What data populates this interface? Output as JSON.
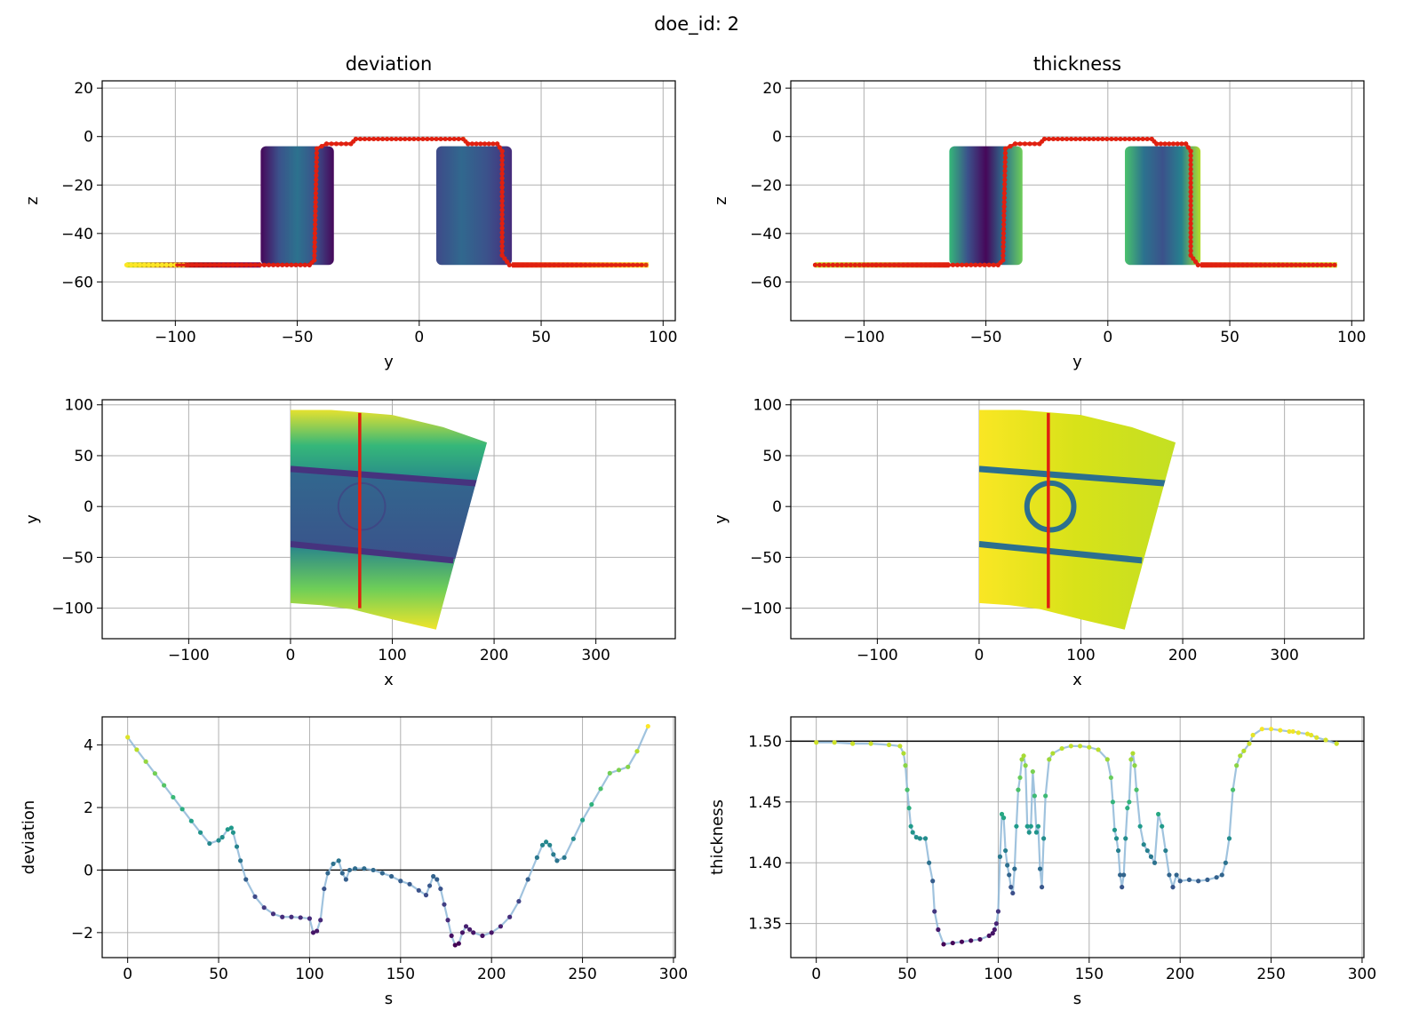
{
  "figure": {
    "suptitle": "doe_id: 2"
  },
  "chart_data": [
    {
      "id": "yz-deviation",
      "type": "scatter",
      "title": "deviation",
      "xlabel": "y",
      "ylabel": "z",
      "xlim": [
        -130,
        105
      ],
      "ylim": [
        -76,
        23
      ],
      "xticks": [
        -100,
        -50,
        0,
        50,
        100
      ],
      "yticks": [
        -60,
        -40,
        -20,
        0,
        20
      ],
      "grid": true,
      "colormap": "viridis",
      "colorset": [
        "#440154",
        "#482878",
        "#3e4a89",
        "#31688e",
        "#26828e",
        "#1f9e89",
        "#35b779",
        "#6ece58",
        "#b5de2b",
        "#fde725"
      ],
      "profile": [
        [
          -120,
          -53
        ],
        [
          -100,
          -53
        ],
        [
          -95,
          -53
        ],
        [
          -45,
          -53
        ],
        [
          -43,
          -51
        ],
        [
          -42,
          -5
        ],
        [
          -38,
          -3
        ],
        [
          -28,
          -3
        ],
        [
          -26,
          -1
        ],
        [
          18,
          -1
        ],
        [
          20,
          -3
        ],
        [
          32,
          -3
        ],
        [
          34,
          -6
        ],
        [
          34,
          -49
        ],
        [
          37,
          -53
        ],
        [
          70,
          -53
        ],
        [
          93,
          -53
        ]
      ],
      "profile_colors": [
        "#fde725",
        "#fde725",
        "#d21010",
        "#d21010",
        "#e02010",
        "#e02010",
        "#e02010",
        "#e02010",
        "#e02010",
        "#e23a10",
        "#e02010",
        "#e02010",
        "#e02010",
        "#e02010",
        "#e02010",
        "#e03a10",
        "#fde725"
      ],
      "projection_line": {
        "color": "#e02010",
        "points": [
          [
            -100,
            -53
          ],
          [
            -45,
            -53
          ],
          [
            -43,
            -51
          ],
          [
            -42,
            -5
          ],
          [
            -38,
            -3
          ],
          [
            -28,
            -3
          ],
          [
            -26,
            -1
          ],
          [
            18,
            -1
          ],
          [
            20,
            -3
          ],
          [
            32,
            -3
          ],
          [
            34,
            -6
          ],
          [
            34,
            -49
          ],
          [
            37,
            -53
          ],
          [
            92,
            -53
          ]
        ]
      },
      "regions": [
        {
          "name": "left-wall",
          "y": [
            -65,
            -35
          ],
          "z": [
            -53,
            -4
          ],
          "colors": [
            "#46075a",
            "#3b528b",
            "#2c728e",
            "#3b528b",
            "#46075a"
          ]
        },
        {
          "name": "right-wall",
          "y": [
            7,
            38
          ],
          "z": [
            -53,
            -4
          ],
          "colors": [
            "#3e4a89",
            "#31688e",
            "#3b528b",
            "#472d7b"
          ]
        }
      ],
      "flanges": [
        {
          "name": "left-flange",
          "y": [
            -120,
            -65
          ],
          "z": -53,
          "colors": [
            "#c8e020",
            "#9b1010",
            "#7a0a5a"
          ]
        },
        {
          "name": "right-flange",
          "y": [
            38,
            94
          ],
          "z": -53,
          "colors": [
            "#e02010",
            "#f07010",
            "#fde725"
          ]
        }
      ]
    },
    {
      "id": "yz-thickness",
      "type": "scatter",
      "title": "thickness",
      "xlabel": "y",
      "ylabel": "z",
      "xlim": [
        -130,
        105
      ],
      "ylim": [
        -76,
        23
      ],
      "xticks": [
        -100,
        -50,
        0,
        50,
        100
      ],
      "yticks": [
        -60,
        -40,
        -20,
        0,
        20
      ],
      "grid": true,
      "colormap": "viridis",
      "profile": [
        [
          -120,
          -53
        ],
        [
          -100,
          -53
        ],
        [
          -95,
          -53
        ],
        [
          -45,
          -53
        ],
        [
          -43,
          -51
        ],
        [
          -42,
          -5
        ],
        [
          -38,
          -3
        ],
        [
          -28,
          -3
        ],
        [
          -26,
          -1
        ],
        [
          18,
          -1
        ],
        [
          20,
          -3
        ],
        [
          32,
          -3
        ],
        [
          34,
          -6
        ],
        [
          34,
          -49
        ],
        [
          37,
          -53
        ],
        [
          70,
          -53
        ],
        [
          93,
          -53
        ]
      ],
      "projection_line": {
        "color": "#e02010",
        "points": [
          [
            -100,
            -53
          ],
          [
            -45,
            -53
          ],
          [
            -43,
            -51
          ],
          [
            -42,
            -5
          ],
          [
            -38,
            -3
          ],
          [
            -28,
            -3
          ],
          [
            -26,
            -1
          ],
          [
            18,
            -1
          ],
          [
            20,
            -3
          ],
          [
            32,
            -3
          ],
          [
            34,
            -6
          ],
          [
            34,
            -49
          ],
          [
            37,
            -53
          ],
          [
            92,
            -53
          ]
        ]
      },
      "regions": [
        {
          "name": "left-wall",
          "y": [
            -65,
            -35
          ],
          "z": [
            -53,
            -4
          ],
          "colors": [
            "#35b779",
            "#3b528b",
            "#46075a",
            "#2c728e",
            "#6ece58"
          ]
        },
        {
          "name": "right-wall",
          "y": [
            7,
            38
          ],
          "z": [
            -53,
            -4
          ],
          "colors": [
            "#4ac16d",
            "#2c728e",
            "#3b528b",
            "#26828e",
            "#b5de2b"
          ]
        }
      ],
      "flanges": [
        {
          "name": "left-flange",
          "y": [
            -120,
            -65
          ],
          "z": -53,
          "colors": [
            "#c8e020",
            "#e02010"
          ]
        },
        {
          "name": "right-flange",
          "y": [
            38,
            94
          ],
          "z": -53,
          "colors": [
            "#e02010",
            "#d0e020"
          ]
        }
      ]
    },
    {
      "id": "xy-deviation",
      "type": "scatter",
      "xlabel": "x",
      "ylabel": "y",
      "xlim": [
        -185,
        378
      ],
      "ylim": [
        -130,
        105
      ],
      "xticks": [
        -100,
        0,
        100,
        200,
        300
      ],
      "yticks": [
        -100,
        -50,
        0,
        50,
        100
      ],
      "grid": true,
      "colormap": "viridis",
      "sheet_outline": [
        [
          0,
          95
        ],
        [
          40,
          95
        ],
        [
          100,
          90
        ],
        [
          150,
          78
        ],
        [
          193,
          63
        ],
        [
          143,
          -121
        ],
        [
          100,
          -111
        ],
        [
          60,
          -101
        ],
        [
          30,
          -97
        ],
        [
          0,
          -95
        ]
      ],
      "bands": [
        {
          "name": "outer-top",
          "stops": [
            "#fde725",
            "#35b779",
            "#26828e"
          ]
        },
        {
          "name": "inner",
          "stops": [
            "#31688e",
            "#3b528b"
          ]
        },
        {
          "name": "outer-bottom",
          "stops": [
            "#26828e",
            "#6ece58",
            "#fde725"
          ]
        }
      ],
      "edge_lines": {
        "color": "#46337e",
        "upper_y": [
          37,
          22
        ],
        "lower_y": [
          -37,
          -53
        ]
      },
      "circle": {
        "cx": 70,
        "cy": 0,
        "r": 23
      },
      "section_line": {
        "color": "#e02010",
        "x": 68,
        "y": [
          -100,
          92
        ]
      }
    },
    {
      "id": "xy-thickness",
      "type": "scatter",
      "xlabel": "x",
      "ylabel": "y",
      "xlim": [
        -185,
        378
      ],
      "ylim": [
        -130,
        105
      ],
      "xticks": [
        -100,
        0,
        100,
        200,
        300
      ],
      "yticks": [
        -100,
        -50,
        0,
        50,
        100
      ],
      "grid": true,
      "colormap": "viridis",
      "sheet_outline": [
        [
          0,
          95
        ],
        [
          40,
          95
        ],
        [
          100,
          90
        ],
        [
          150,
          78
        ],
        [
          193,
          63
        ],
        [
          143,
          -121
        ],
        [
          100,
          -111
        ],
        [
          60,
          -101
        ],
        [
          30,
          -97
        ],
        [
          0,
          -95
        ]
      ],
      "bands": [
        {
          "name": "sheet",
          "stops": [
            "#fde725",
            "#d8e219",
            "#c2df23"
          ]
        }
      ],
      "edge_lines": {
        "color": "#2c6f8e",
        "upper_y": [
          37,
          22
        ],
        "lower_y": [
          -37,
          -53
        ]
      },
      "circle": {
        "cx": 70,
        "cy": 0,
        "r": 23
      },
      "section_line": {
        "color": "#e02010",
        "x": 68,
        "y": [
          -100,
          92
        ]
      }
    },
    {
      "id": "s-deviation",
      "type": "line",
      "xlabel": "s",
      "ylabel": "deviation",
      "xlim": [
        -14,
        301
      ],
      "ylim": [
        -2.8,
        4.9
      ],
      "xticks": [
        0,
        50,
        100,
        150,
        200,
        250,
        300
      ],
      "yticks": [
        -2,
        0,
        2,
        4
      ],
      "grid": true,
      "hline": 0,
      "color_range": [
        -2.4,
        4.6
      ],
      "series": [
        {
          "x": [
            0,
            5,
            10,
            15,
            20,
            25,
            30,
            35,
            40,
            45,
            50,
            52,
            55,
            57,
            58,
            60,
            62,
            65,
            70,
            75,
            80,
            85,
            90,
            95,
            100,
            102,
            104,
            106,
            108,
            110,
            113,
            116,
            118,
            120,
            122,
            125,
            130,
            135,
            140,
            145,
            150,
            155,
            160,
            164,
            166,
            168,
            170,
            172,
            174,
            176,
            178,
            180,
            182,
            184,
            186,
            188,
            190,
            195,
            200,
            205,
            210,
            215,
            220,
            225,
            228,
            230,
            232,
            234,
            236,
            240,
            245,
            250,
            255,
            260,
            265,
            270,
            275,
            280,
            286
          ],
          "values": [
            4.25,
            3.85,
            3.47,
            3.09,
            2.71,
            2.33,
            1.95,
            1.57,
            1.2,
            0.85,
            0.95,
            1.05,
            1.3,
            1.35,
            1.2,
            0.75,
            0.3,
            -0.3,
            -0.85,
            -1.2,
            -1.4,
            -1.5,
            -1.5,
            -1.52,
            -1.55,
            -2.0,
            -1.95,
            -1.6,
            -0.6,
            -0.1,
            0.2,
            0.3,
            -0.1,
            -0.3,
            0.0,
            0.05,
            0.05,
            0.0,
            -0.1,
            -0.2,
            -0.35,
            -0.45,
            -0.65,
            -0.8,
            -0.5,
            -0.2,
            -0.3,
            -0.6,
            -1.1,
            -1.6,
            -2.1,
            -2.4,
            -2.35,
            -2.0,
            -1.8,
            -1.9,
            -2.0,
            -2.1,
            -2.0,
            -1.8,
            -1.5,
            -1.0,
            -0.3,
            0.4,
            0.8,
            0.9,
            0.8,
            0.5,
            0.3,
            0.4,
            1.0,
            1.6,
            2.1,
            2.6,
            3.1,
            3.2,
            3.3,
            3.8,
            4.6
          ]
        }
      ]
    },
    {
      "id": "s-thickness",
      "type": "line",
      "xlabel": "s",
      "ylabel": "thickness",
      "xlim": [
        -14,
        301
      ],
      "ylim": [
        1.322,
        1.52
      ],
      "xticks": [
        0,
        50,
        100,
        150,
        200,
        250,
        300
      ],
      "yticks": [
        1.35,
        1.4,
        1.45,
        1.5
      ],
      "ytick_labels": [
        "1.35",
        "1.40",
        "1.45",
        "1.50"
      ],
      "grid": true,
      "hline": 1.5,
      "color_range": [
        1.332,
        1.512
      ],
      "series": [
        {
          "x": [
            0,
            10,
            20,
            30,
            40,
            46,
            48,
            49,
            50,
            51,
            52,
            53,
            55,
            57,
            60,
            62,
            64,
            65,
            67,
            70,
            75,
            80,
            85,
            90,
            95,
            97,
            98,
            99,
            100,
            101,
            102,
            103,
            104,
            105,
            106,
            107,
            108,
            109,
            110,
            111,
            112,
            113,
            114,
            115,
            116,
            117,
            118,
            119,
            120,
            121,
            122,
            123,
            124,
            125,
            126,
            128,
            130,
            135,
            140,
            145,
            150,
            155,
            160,
            162,
            163,
            164,
            165,
            166,
            167,
            168,
            169,
            170,
            171,
            172,
            173,
            174,
            175,
            176,
            178,
            180,
            182,
            184,
            186,
            188,
            190,
            192,
            194,
            196,
            198,
            200,
            205,
            210,
            215,
            220,
            223,
            225,
            227,
            229,
            231,
            233,
            235,
            238,
            240,
            245,
            250,
            255,
            260,
            262,
            265,
            270,
            272,
            275,
            280,
            286
          ],
          "values": [
            1.499,
            1.499,
            1.498,
            1.498,
            1.497,
            1.496,
            1.49,
            1.48,
            1.46,
            1.445,
            1.43,
            1.425,
            1.421,
            1.42,
            1.42,
            1.4,
            1.385,
            1.36,
            1.345,
            1.333,
            1.334,
            1.335,
            1.336,
            1.337,
            1.34,
            1.342,
            1.345,
            1.35,
            1.36,
            1.405,
            1.44,
            1.437,
            1.41,
            1.398,
            1.39,
            1.38,
            1.375,
            1.395,
            1.43,
            1.46,
            1.47,
            1.485,
            1.488,
            1.48,
            1.43,
            1.425,
            1.43,
            1.475,
            1.455,
            1.425,
            1.43,
            1.395,
            1.38,
            1.42,
            1.455,
            1.485,
            1.49,
            1.494,
            1.496,
            1.496,
            1.495,
            1.493,
            1.485,
            1.47,
            1.45,
            1.427,
            1.42,
            1.41,
            1.39,
            1.38,
            1.39,
            1.42,
            1.445,
            1.45,
            1.485,
            1.49,
            1.48,
            1.46,
            1.43,
            1.415,
            1.41,
            1.405,
            1.4,
            1.44,
            1.43,
            1.41,
            1.39,
            1.38,
            1.39,
            1.385,
            1.386,
            1.385,
            1.386,
            1.388,
            1.39,
            1.4,
            1.42,
            1.46,
            1.48,
            1.488,
            1.492,
            1.498,
            1.505,
            1.51,
            1.51,
            1.509,
            1.508,
            1.508,
            1.507,
            1.506,
            1.505,
            1.503,
            1.501,
            1.498
          ]
        }
      ]
    }
  ]
}
